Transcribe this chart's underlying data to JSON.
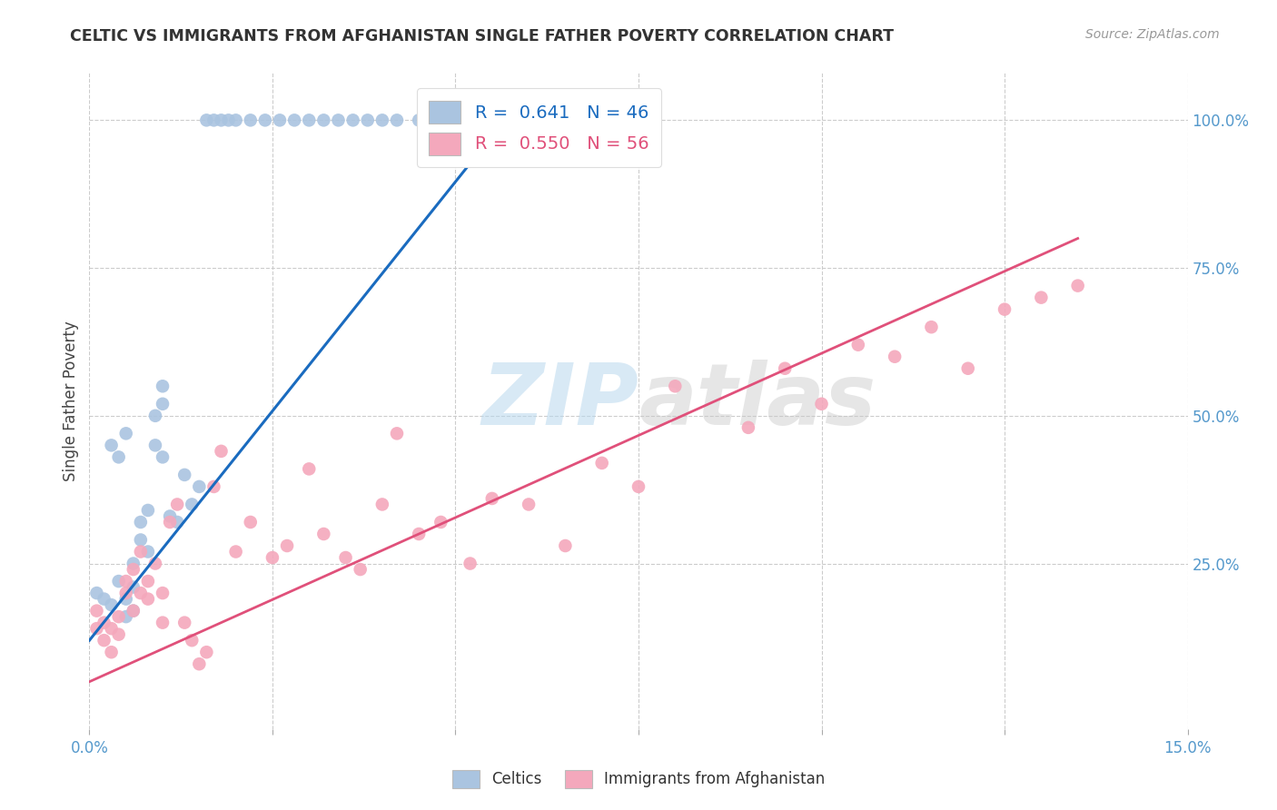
{
  "title": "CELTIC VS IMMIGRANTS FROM AFGHANISTAN SINGLE FATHER POVERTY CORRELATION CHART",
  "source": "Source: ZipAtlas.com",
  "ylabel": "Single Father Poverty",
  "xmin": 0.0,
  "xmax": 0.15,
  "ymin": -0.03,
  "ymax": 1.08,
  "legend_blue_label": "R =  0.641   N = 46",
  "legend_pink_label": "R =  0.550   N = 56",
  "celtics_color": "#aac4e0",
  "afghanistan_color": "#f4a8bc",
  "blue_line_color": "#1a6bbf",
  "pink_line_color": "#e0507a",
  "watermark_color": "#d0e8f5",
  "celtics_x": [
    0.001,
    0.002,
    0.003,
    0.003,
    0.004,
    0.004,
    0.005,
    0.005,
    0.005,
    0.006,
    0.006,
    0.006,
    0.007,
    0.007,
    0.008,
    0.008,
    0.009,
    0.009,
    0.01,
    0.01,
    0.01,
    0.011,
    0.012,
    0.013,
    0.014,
    0.015,
    0.016,
    0.017,
    0.018,
    0.019,
    0.02,
    0.022,
    0.024,
    0.026,
    0.028,
    0.03,
    0.032,
    0.034,
    0.036,
    0.038,
    0.04,
    0.042,
    0.045,
    0.048,
    0.052,
    0.058
  ],
  "celtics_y": [
    0.2,
    0.19,
    0.18,
    0.45,
    0.22,
    0.43,
    0.16,
    0.19,
    0.47,
    0.17,
    0.21,
    0.25,
    0.29,
    0.32,
    0.34,
    0.27,
    0.45,
    0.5,
    0.52,
    0.43,
    0.55,
    0.33,
    0.32,
    0.4,
    0.35,
    0.38,
    1.0,
    1.0,
    1.0,
    1.0,
    1.0,
    1.0,
    1.0,
    1.0,
    1.0,
    1.0,
    1.0,
    1.0,
    1.0,
    1.0,
    1.0,
    1.0,
    1.0,
    1.0,
    1.0,
    1.0
  ],
  "afghanistan_x": [
    0.001,
    0.001,
    0.002,
    0.002,
    0.003,
    0.003,
    0.004,
    0.004,
    0.005,
    0.005,
    0.006,
    0.006,
    0.007,
    0.007,
    0.008,
    0.008,
    0.009,
    0.01,
    0.01,
    0.011,
    0.012,
    0.013,
    0.014,
    0.015,
    0.016,
    0.017,
    0.018,
    0.02,
    0.022,
    0.025,
    0.027,
    0.03,
    0.032,
    0.035,
    0.037,
    0.04,
    0.042,
    0.045,
    0.048,
    0.052,
    0.055,
    0.06,
    0.065,
    0.07,
    0.075,
    0.08,
    0.09,
    0.095,
    0.1,
    0.105,
    0.11,
    0.115,
    0.12,
    0.125,
    0.13,
    0.135
  ],
  "afghanistan_y": [
    0.14,
    0.17,
    0.12,
    0.15,
    0.14,
    0.1,
    0.13,
    0.16,
    0.2,
    0.22,
    0.17,
    0.24,
    0.2,
    0.27,
    0.19,
    0.22,
    0.25,
    0.2,
    0.15,
    0.32,
    0.35,
    0.15,
    0.12,
    0.08,
    0.1,
    0.38,
    0.44,
    0.27,
    0.32,
    0.26,
    0.28,
    0.41,
    0.3,
    0.26,
    0.24,
    0.35,
    0.47,
    0.3,
    0.32,
    0.25,
    0.36,
    0.35,
    0.28,
    0.42,
    0.38,
    0.55,
    0.48,
    0.58,
    0.52,
    0.62,
    0.6,
    0.65,
    0.58,
    0.68,
    0.7,
    0.72
  ],
  "blue_line_x": [
    0.0,
    0.058
  ],
  "blue_line_y": [
    0.12,
    1.02
  ],
  "pink_line_x": [
    0.0,
    0.135
  ],
  "pink_line_y": [
    0.05,
    0.8
  ],
  "xtick_show": [
    0.0,
    0.15
  ],
  "xtick_minor": [
    0.025,
    0.05,
    0.075,
    0.1,
    0.125
  ],
  "ytick_right": [
    0.25,
    0.5,
    0.75,
    1.0
  ],
  "ytick_labels": [
    "25.0%",
    "50.0%",
    "75.0%",
    "100.0%"
  ]
}
